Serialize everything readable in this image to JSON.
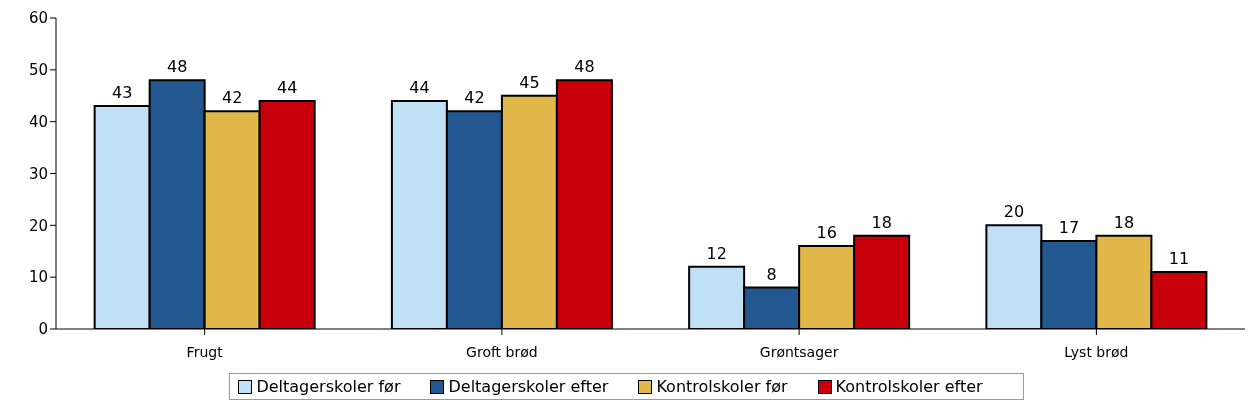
{
  "chart_data": {
    "type": "bar",
    "categories": [
      "Frugt",
      "Groft brød",
      "Grøntsager",
      "Lyst brød"
    ],
    "series": [
      {
        "name": "Deltagerskoler før",
        "color": "#bfe0f5",
        "values": [
          43,
          44,
          12,
          20
        ]
      },
      {
        "name": "Deltagerskoler efter",
        "color": "#23578f",
        "values": [
          48,
          42,
          8,
          17
        ]
      },
      {
        "name": "Kontrolskoler før",
        "color": "#e3b84a",
        "values": [
          42,
          45,
          16,
          18
        ]
      },
      {
        "name": "Kontrolskoler efter",
        "color": "#c8000b",
        "values": [
          44,
          48,
          18,
          11
        ]
      }
    ],
    "ylim": [
      0,
      60
    ],
    "yticks": [
      0,
      10,
      20,
      30,
      40,
      50,
      60
    ],
    "data_labels": true,
    "grid": false,
    "legend": "bottom"
  }
}
